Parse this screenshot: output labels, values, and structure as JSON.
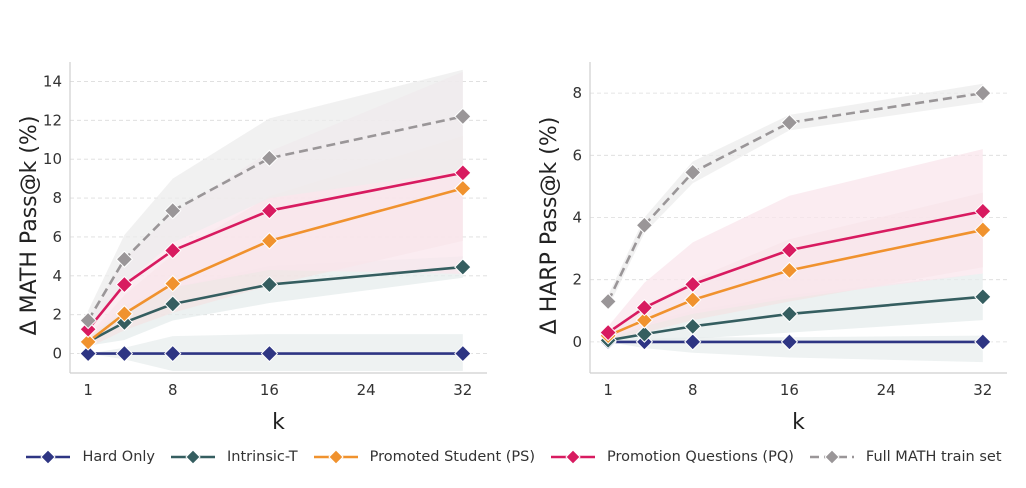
{
  "chart_data": [
    {
      "type": "line",
      "title": "",
      "xlabel": "k",
      "ylabel": "Δ MATH Pass@k (%)",
      "x": [
        1,
        4,
        8,
        16,
        32
      ],
      "xlim": [
        -0.5,
        34
      ],
      "ylim": [
        -1,
        15
      ],
      "xticks": [
        1,
        8,
        16,
        24,
        32
      ],
      "yticks": [
        0,
        2,
        4,
        6,
        8,
        10,
        12,
        14
      ],
      "grid": "horizontal dashed",
      "series": [
        {
          "name": "Hard Only",
          "values": [
            0,
            0,
            0,
            0,
            0
          ],
          "band_low": [
            0,
            -0.3,
            -0.9,
            -0.9,
            -0.9
          ],
          "band_high": [
            0,
            0.3,
            0.9,
            1.0,
            1.0
          ]
        },
        {
          "name": "Intrinsic-T",
          "values": [
            0.6,
            1.6,
            2.55,
            3.55,
            4.45
          ],
          "band_low": [
            0.4,
            0.7,
            1.7,
            2.6,
            3.9
          ],
          "band_high": [
            0.8,
            2.5,
            3.4,
            4.5,
            5.0
          ]
        },
        {
          "name": "Promoted Student (PS)",
          "values": [
            0.6,
            2.05,
            3.6,
            5.8,
            8.5
          ],
          "band_low": [
            0.3,
            1.2,
            2.1,
            3.5,
            5.8
          ],
          "band_high": [
            0.9,
            3.0,
            5.1,
            8.1,
            11.2
          ]
        },
        {
          "name": "Promotion Questions (PQ)",
          "values": [
            1.25,
            3.55,
            5.3,
            7.35,
            9.3
          ],
          "band_low": [
            0.8,
            2.2,
            3.4,
            4.3,
            4.1
          ],
          "band_high": [
            1.7,
            4.9,
            7.2,
            10.4,
            14.5
          ]
        },
        {
          "name": "Full MATH train set",
          "values": [
            1.7,
            4.85,
            7.35,
            10.05,
            12.2
          ],
          "band_low": [
            1.2,
            3.6,
            5.7,
            8.0,
            9.4
          ],
          "band_high": [
            2.2,
            6.1,
            9.0,
            12.1,
            14.6
          ]
        }
      ]
    },
    {
      "type": "line",
      "title": "",
      "xlabel": "k",
      "ylabel": "Δ HARP Pass@k (%)",
      "x": [
        1,
        4,
        8,
        16,
        32
      ],
      "xlim": [
        -0.5,
        34
      ],
      "ylim": [
        -1,
        9
      ],
      "xticks": [
        1,
        8,
        16,
        24,
        32
      ],
      "yticks": [
        0,
        2,
        4,
        6,
        8
      ],
      "grid": "horizontal dashed",
      "series": [
        {
          "name": "Hard Only",
          "values": [
            0,
            0,
            0,
            0,
            0
          ],
          "band_low": [
            0,
            -0.2,
            -0.35,
            -0.5,
            -0.65
          ],
          "band_high": [
            0,
            0.1,
            0.15,
            0.15,
            0.2
          ]
        },
        {
          "name": "Intrinsic-T",
          "values": [
            0.05,
            0.25,
            0.5,
            0.9,
            1.45
          ],
          "band_low": [
            0,
            0.0,
            0.1,
            0.3,
            0.7
          ],
          "band_high": [
            0.1,
            0.6,
            1.0,
            1.5,
            2.2
          ]
        },
        {
          "name": "Promoted Student (PS)",
          "values": [
            0.2,
            0.7,
            1.35,
            2.3,
            3.6
          ],
          "band_low": [
            0.05,
            0.3,
            0.7,
            1.3,
            2.4
          ],
          "band_high": [
            0.35,
            1.1,
            2.0,
            3.3,
            4.8
          ]
        },
        {
          "name": "Promotion Questions (PQ)",
          "values": [
            0.3,
            1.1,
            1.85,
            2.95,
            4.2
          ],
          "band_low": [
            0.1,
            0.5,
            0.9,
            1.4,
            2.2
          ],
          "band_high": [
            0.5,
            1.9,
            3.2,
            4.7,
            6.2
          ]
        },
        {
          "name": "Full MATH train set",
          "values": [
            1.3,
            3.75,
            5.45,
            7.05,
            8.0
          ],
          "band_low": [
            1.1,
            3.5,
            5.1,
            6.8,
            7.7
          ],
          "band_high": [
            1.5,
            4.0,
            5.8,
            7.3,
            8.3
          ]
        }
      ]
    }
  ],
  "series_style": [
    {
      "name": "Hard Only",
      "color": "#2e3583",
      "dashed": false,
      "band_color": "#e8eeed"
    },
    {
      "name": "Intrinsic-T",
      "color": "#355e60",
      "dashed": false,
      "band_color": "#e6ecec"
    },
    {
      "name": "Promoted Student (PS)",
      "color": "#f0922e",
      "dashed": false,
      "band_color": "#f3e3e3"
    },
    {
      "name": "Promotion Questions (PQ)",
      "color": "#d81b60",
      "dashed": false,
      "band_color": "#f9e6ec"
    },
    {
      "name": "Full MATH train set",
      "color": "#9a9698",
      "dashed": true,
      "band_color": "#ececec"
    }
  ],
  "legend": {
    "placement": "bottom-center",
    "items": [
      "Hard Only",
      "Intrinsic-T",
      "Promoted Student (PS)",
      "Promotion Questions (PQ)",
      "Full MATH train set"
    ]
  }
}
